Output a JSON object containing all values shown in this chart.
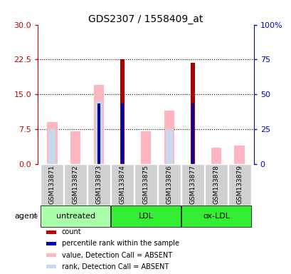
{
  "title": "GDS2307 / 1558409_at",
  "samples": [
    "GSM133871",
    "GSM133872",
    "GSM133873",
    "GSM133874",
    "GSM133875",
    "GSM133876",
    "GSM133877",
    "GSM133878",
    "GSM133879"
  ],
  "red_bars": [
    0,
    0,
    0,
    22.5,
    0,
    0,
    21.8,
    0,
    0
  ],
  "blue_bars_pct": [
    0,
    0,
    43.3,
    43.3,
    0,
    0,
    43.3,
    0,
    0
  ],
  "pink_bars": [
    9.0,
    7.0,
    17.0,
    0,
    7.0,
    11.5,
    0,
    3.5,
    4.0
  ],
  "lavender_bars_pct": [
    25.0,
    0,
    45.0,
    0,
    0,
    25.0,
    0,
    0,
    0
  ],
  "ylim_left": [
    0,
    30
  ],
  "ylim_right": [
    0,
    100
  ],
  "yticks_left": [
    0,
    7.5,
    15,
    22.5,
    30
  ],
  "yticks_right": [
    0,
    25,
    50,
    75,
    100
  ],
  "right_tick_labels": [
    "0",
    "25",
    "50",
    "75",
    "100%"
  ],
  "left_color": "#CC0000",
  "right_color": "#0000CC",
  "groups": [
    {
      "label": "untreated",
      "start": 0,
      "end": 2,
      "color": "#AAFFAA"
    },
    {
      "label": "LDL",
      "start": 3,
      "end": 5,
      "color": "#33EE33"
    },
    {
      "label": "ox-LDL",
      "start": 6,
      "end": 8,
      "color": "#33EE33"
    }
  ],
  "legend_items": [
    {
      "color": "#CC0000",
      "label": "count"
    },
    {
      "color": "#0000CC",
      "label": "percentile rank within the sample"
    },
    {
      "color": "#FFB6C1",
      "label": "value, Detection Call = ABSENT"
    },
    {
      "color": "#C8D8F0",
      "label": "rank, Detection Call = ABSENT"
    }
  ],
  "pink_color": "#FFB6C1",
  "lavender_color": "#C8D8F0",
  "red_color": "#AA0000",
  "blue_color": "#0000AA",
  "gray_box_color": "#D0D0D0",
  "agent_label": "agent"
}
